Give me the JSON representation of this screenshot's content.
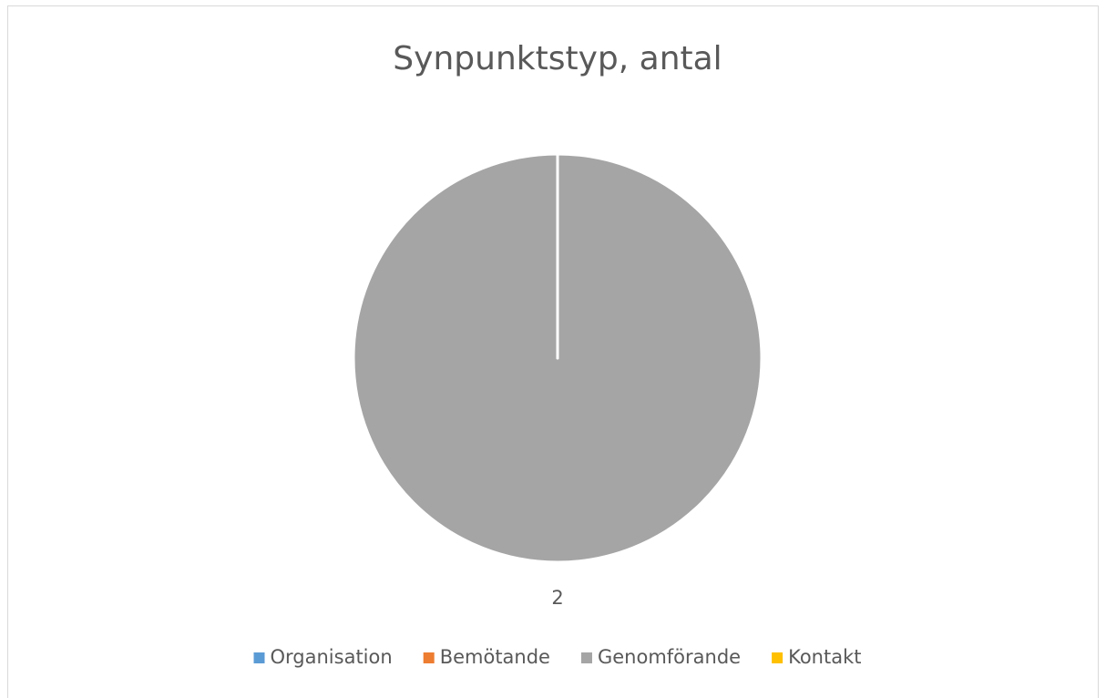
{
  "chart_data": {
    "type": "pie",
    "title": "Synpunktstyp, antal",
    "categories": [
      "Organisation",
      "Bemötande",
      "Genomförande",
      "Kontakt"
    ],
    "values": [
      0,
      0,
      2,
      0
    ],
    "colors": [
      "#5b9bd5",
      "#ed7d31",
      "#a5a5a5",
      "#ffc000"
    ],
    "legend": "bottom"
  }
}
